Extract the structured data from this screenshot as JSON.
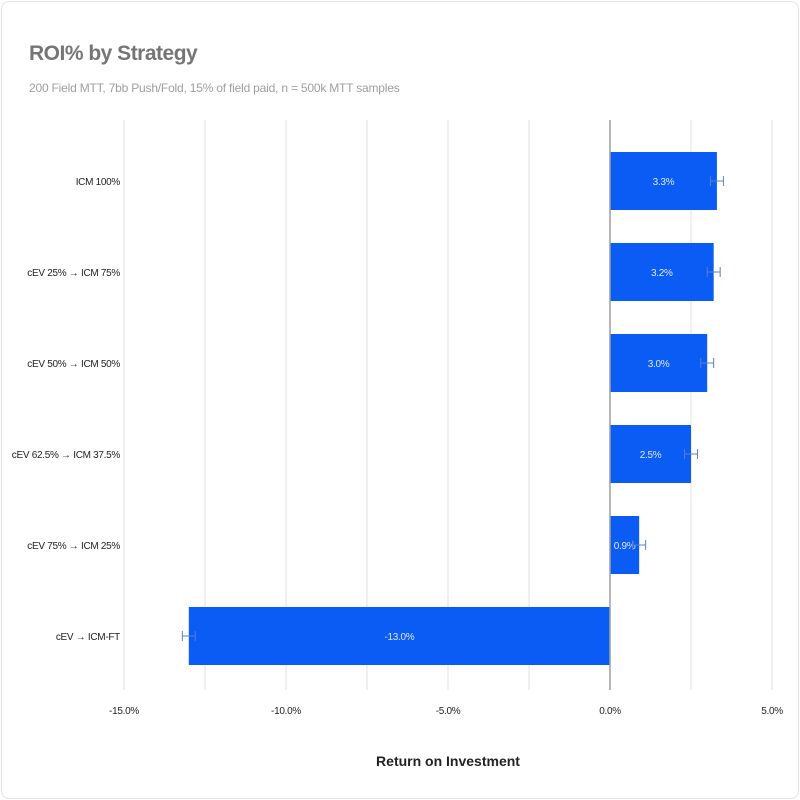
{
  "chart_data": {
    "type": "bar",
    "orientation": "horizontal",
    "title": "ROI% by Strategy",
    "subtitle": "200 Field MTT, 7bb Push/Fold, 15% of field paid, n = 500k MTT samples",
    "xlabel": "Return on Investment",
    "ylabel": "",
    "categories": [
      "ICM 100%",
      "cEV 25% → ICM 75%",
      "cEV 50% → ICM 50%",
      "cEV 62.5% → ICM 37.5%",
      "cEV 75% → ICM 25%",
      "cEV → ICM-FT"
    ],
    "values": [
      3.3,
      3.2,
      3.0,
      2.5,
      0.9,
      -13.0
    ],
    "error": [
      0.2,
      0.2,
      0.2,
      0.2,
      0.2,
      0.2
    ],
    "data_labels": [
      "3.3%",
      "3.2%",
      "3.0%",
      "2.5%",
      "0.9%",
      "-13.0%"
    ],
    "xlim": [
      -15,
      5
    ],
    "xticks": [
      -15,
      -10,
      -5,
      0,
      5
    ],
    "xtick_labels": [
      "-15.0%",
      "-10.0%",
      "-5.0%",
      "0.0%",
      "5.0%"
    ],
    "grid": true,
    "legend": "none",
    "bar_color": "#0a5cf5",
    "error_color": "#5b7fc7"
  }
}
